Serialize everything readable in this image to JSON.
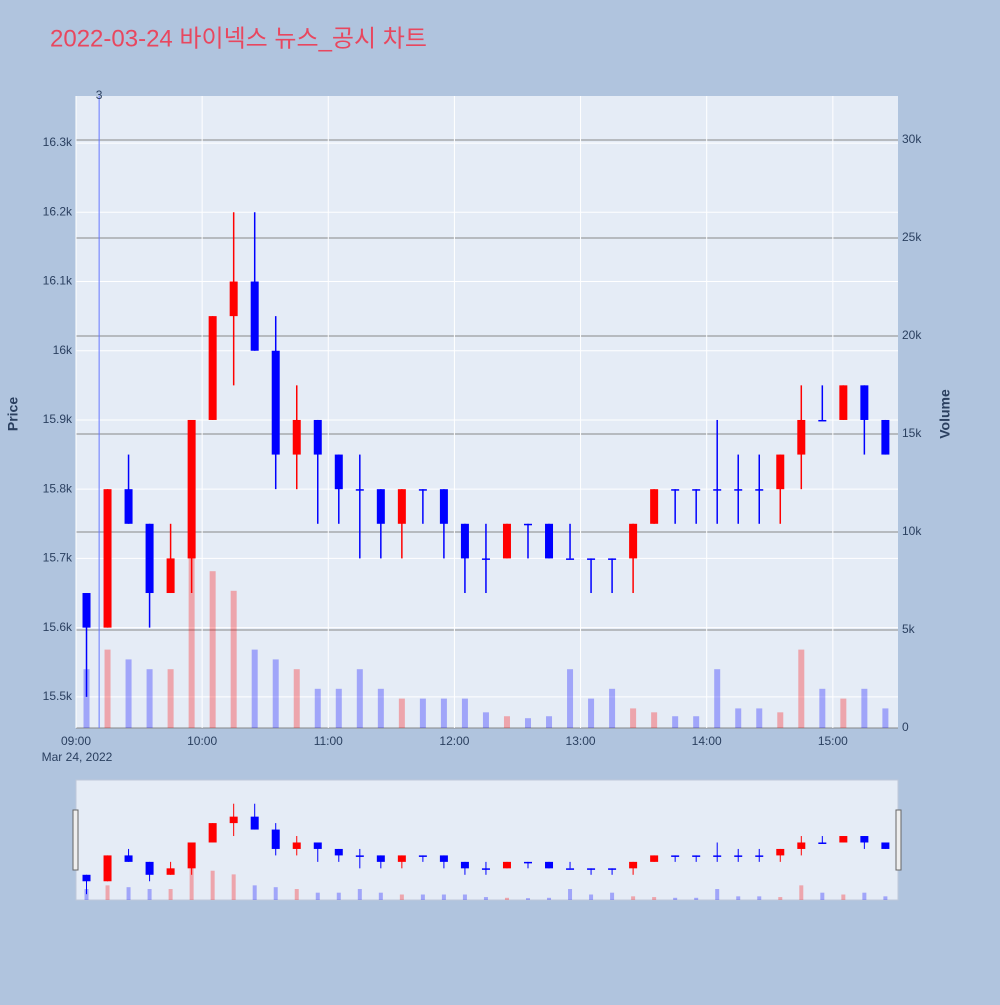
{
  "chart_data": {
    "type": "candlestick",
    "title": "2022-03-24 바이넥스 뉴스_공시 차트",
    "yaxis_title": "Price",
    "y2axis_title": "Volume",
    "x_date_label": "Mar 24, 2022",
    "x": [
      "09:00",
      "09:10",
      "09:20",
      "09:30",
      "09:40",
      "09:50",
      "10:00",
      "10:10",
      "10:20",
      "10:30",
      "10:40",
      "10:50",
      "11:00",
      "11:10",
      "11:20",
      "11:30",
      "11:40",
      "11:50",
      "12:00",
      "12:10",
      "12:20",
      "12:30",
      "12:40",
      "12:50",
      "13:00",
      "13:10",
      "13:20",
      "13:30",
      "13:40",
      "13:50",
      "14:00",
      "14:10",
      "14:20",
      "14:30",
      "14:40",
      "14:50",
      "15:00",
      "15:10",
      "15:20"
    ],
    "open": [
      15650,
      15600,
      15800,
      15750,
      15650,
      15700,
      15900,
      16050,
      16100,
      16000,
      15850,
      15900,
      15850,
      15800,
      15800,
      15750,
      15800,
      15800,
      15750,
      15700,
      15700,
      15750,
      15750,
      15700,
      15700,
      15700,
      15700,
      15750,
      15800,
      15800,
      15800,
      15800,
      15800,
      15800,
      15850,
      15900,
      15900,
      15950,
      15900
    ],
    "high": [
      15650,
      15800,
      15850,
      15750,
      15750,
      15900,
      16050,
      16200,
      16200,
      16050,
      15950,
      15900,
      15850,
      15850,
      15800,
      15800,
      15800,
      15800,
      15750,
      15750,
      15750,
      15750,
      15750,
      15750,
      15700,
      15700,
      15750,
      15800,
      15800,
      15800,
      15900,
      15850,
      15850,
      15850,
      15950,
      15950,
      15950,
      15950,
      15900
    ],
    "low": [
      15500,
      15600,
      15750,
      15600,
      15650,
      15650,
      15900,
      15950,
      16000,
      15800,
      15800,
      15750,
      15750,
      15700,
      15700,
      15700,
      15750,
      15700,
      15650,
      15650,
      15700,
      15700,
      15700,
      15700,
      15650,
      15650,
      15650,
      15750,
      15750,
      15750,
      15750,
      15750,
      15750,
      15750,
      15800,
      15900,
      15900,
      15850,
      15850
    ],
    "close": [
      15600,
      15800,
      15750,
      15650,
      15700,
      15900,
      16050,
      16100,
      16000,
      15850,
      15900,
      15850,
      15800,
      15800,
      15750,
      15800,
      15800,
      15750,
      15700,
      15700,
      15750,
      15750,
      15700,
      15700,
      15700,
      15700,
      15750,
      15800,
      15800,
      15800,
      15800,
      15800,
      15800,
      15850,
      15900,
      15900,
      15950,
      15900,
      15850
    ],
    "volume": [
      3000,
      4000,
      3500,
      3000,
      3000,
      9000,
      8000,
      7000,
      4000,
      3500,
      3000,
      2000,
      2000,
      3000,
      2000,
      1500,
      1500,
      1500,
      1500,
      800,
      600,
      500,
      600,
      3000,
      1500,
      2000,
      1000,
      800,
      600,
      600,
      3000,
      1000,
      1000,
      800,
      4000,
      2000,
      1500,
      2000,
      1000
    ],
    "increasing_color": "#ff0000",
    "decreasing_color": "#0000ff",
    "xlim": [
      "09:00",
      "15:31"
    ],
    "xticks": [
      "09:00",
      "10:00",
      "11:00",
      "12:00",
      "13:00",
      "14:00",
      "15:00"
    ],
    "ylim": [
      15455,
      16368
    ],
    "yticks": [
      {
        "value": 15500,
        "label": "15.5k"
      },
      {
        "value": 15600,
        "label": "15.6k"
      },
      {
        "value": 15700,
        "label": "15.7k"
      },
      {
        "value": 15800,
        "label": "15.8k"
      },
      {
        "value": 15900,
        "label": "15.9k"
      },
      {
        "value": 16000,
        "label": "16k"
      },
      {
        "value": 16100,
        "label": "16.1k"
      },
      {
        "value": 16200,
        "label": "16.2k"
      },
      {
        "value": 16300,
        "label": "16.3k"
      }
    ],
    "y2lim": [
      0,
      32245
    ],
    "y2ticks": [
      0,
      {
        "value": 5000,
        "label": "5k"
      },
      {
        "value": 10000,
        "label": "10k"
      },
      {
        "value": 15000,
        "label": "15k"
      },
      {
        "value": 20000,
        "label": "20k"
      },
      {
        "value": 25000,
        "label": "25k"
      },
      {
        "value": 30000,
        "label": "30k"
      }
    ],
    "annotations": [
      {
        "x": "09:11",
        "text": "3"
      }
    ],
    "rangeslider": true
  }
}
